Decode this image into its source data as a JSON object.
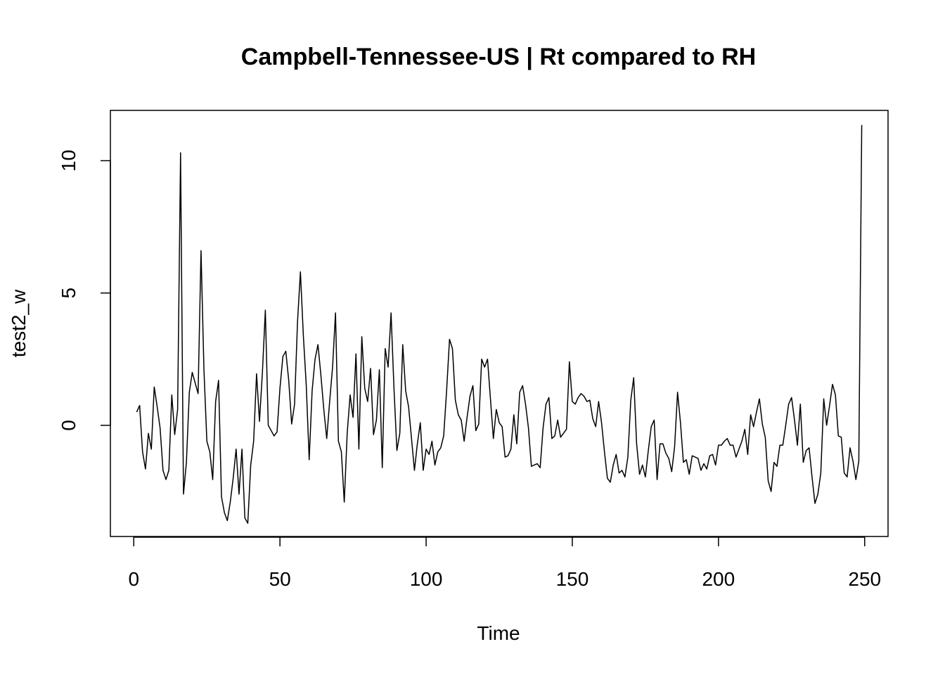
{
  "chart_data": {
    "type": "line",
    "title": "Campbell-Tennessee-US | Rt compared to RH",
    "xlabel": "Time",
    "ylabel": "test2_w",
    "xlim": [
      -8,
      258
    ],
    "ylim": [
      -4.2,
      11.9
    ],
    "x_ticks": [
      0,
      50,
      100,
      150,
      200,
      250
    ],
    "y_ticks": [
      0,
      5,
      10
    ],
    "x_tick_labels": [
      "0",
      "50",
      "100",
      "150",
      "200",
      "250"
    ],
    "y_tick_labels": [
      "0",
      "5",
      "10"
    ],
    "series": [
      {
        "values": [
          0.5,
          0.75,
          -1.0,
          -1.65,
          -0.3,
          -0.9,
          1.45,
          0.7,
          -0.1,
          -1.7,
          -2.05,
          -1.7,
          1.15,
          -0.35,
          0.6,
          10.3,
          -2.6,
          -1.4,
          1.25,
          2.0,
          1.6,
          1.2,
          6.6,
          2.1,
          -0.6,
          -1.0,
          -2.05,
          0.9,
          1.7,
          -2.7,
          -3.3,
          -3.6,
          -2.9,
          -2.0,
          -0.9,
          -2.6,
          -0.9,
          -3.5,
          -3.7,
          -1.5,
          -0.6,
          1.95,
          0.15,
          2.0,
          4.35,
          0.0,
          -0.2,
          -0.4,
          -0.25,
          1.4,
          2.6,
          2.8,
          1.7,
          0.05,
          0.8,
          3.9,
          5.8,
          3.4,
          1.5,
          -1.3,
          1.3,
          2.5,
          3.05,
          1.9,
          0.6,
          -0.5,
          0.9,
          2.2,
          4.25,
          -0.6,
          -1.0,
          -2.9,
          -0.3,
          1.15,
          0.3,
          2.7,
          -0.9,
          3.35,
          1.4,
          0.9,
          2.15,
          -0.35,
          0.2,
          2.1,
          -1.6,
          2.9,
          2.2,
          4.25,
          1.4,
          -0.95,
          -0.3,
          3.05,
          1.3,
          0.7,
          -0.5,
          -1.7,
          -0.7,
          0.1,
          -1.7,
          -0.9,
          -1.1,
          -0.6,
          -1.5,
          -1.0,
          -0.85,
          -0.4,
          1.3,
          3.25,
          2.9,
          0.95,
          0.4,
          0.2,
          -0.6,
          0.3,
          1.1,
          1.5,
          -0.2,
          0.05,
          2.5,
          2.2,
          2.5,
          1.0,
          -0.5,
          0.6,
          0.1,
          -0.05,
          -1.2,
          -1.15,
          -0.9,
          0.4,
          -0.7,
          1.25,
          1.5,
          0.8,
          -0.1,
          -1.55,
          -1.5,
          -1.45,
          -1.6,
          -0.1,
          0.8,
          1.05,
          -0.5,
          -0.4,
          0.2,
          -0.45,
          -0.3,
          -0.15,
          2.4,
          0.9,
          0.8,
          1.05,
          1.2,
          1.1,
          0.9,
          0.95,
          0.25,
          -0.05,
          0.9,
          0.1,
          -1.0,
          -2.0,
          -2.15,
          -1.5,
          -1.1,
          -1.8,
          -1.7,
          -1.95,
          -1.2,
          0.95,
          1.8,
          -0.7,
          -1.85,
          -1.5,
          -1.95,
          -0.95,
          -0.05,
          0.2,
          -2.05,
          -0.7,
          -0.7,
          -1.05,
          -1.25,
          -1.75,
          -0.8,
          1.25,
          0.1,
          -1.4,
          -1.3,
          -1.85,
          -1.15,
          -1.2,
          -1.25,
          -1.7,
          -1.45,
          -1.65,
          -1.15,
          -1.1,
          -1.5,
          -0.75,
          -0.75,
          -0.6,
          -0.5,
          -0.75,
          -0.75,
          -1.2,
          -0.9,
          -0.6,
          -0.15,
          -1.1,
          0.4,
          -0.05,
          0.5,
          1.0,
          0.05,
          -0.45,
          -2.1,
          -2.5,
          -1.4,
          -1.55,
          -0.75,
          -0.75,
          0.0,
          0.8,
          1.05,
          0.2,
          -0.75,
          0.8,
          -1.4,
          -0.95,
          -0.85,
          -1.95,
          -2.95,
          -2.6,
          -1.8,
          1.0,
          0.0,
          0.75,
          1.55,
          1.15,
          -0.4,
          -0.45,
          -1.8,
          -1.95,
          -0.85,
          -1.35,
          -2.05,
          -1.35,
          11.35
        ]
      }
    ]
  }
}
